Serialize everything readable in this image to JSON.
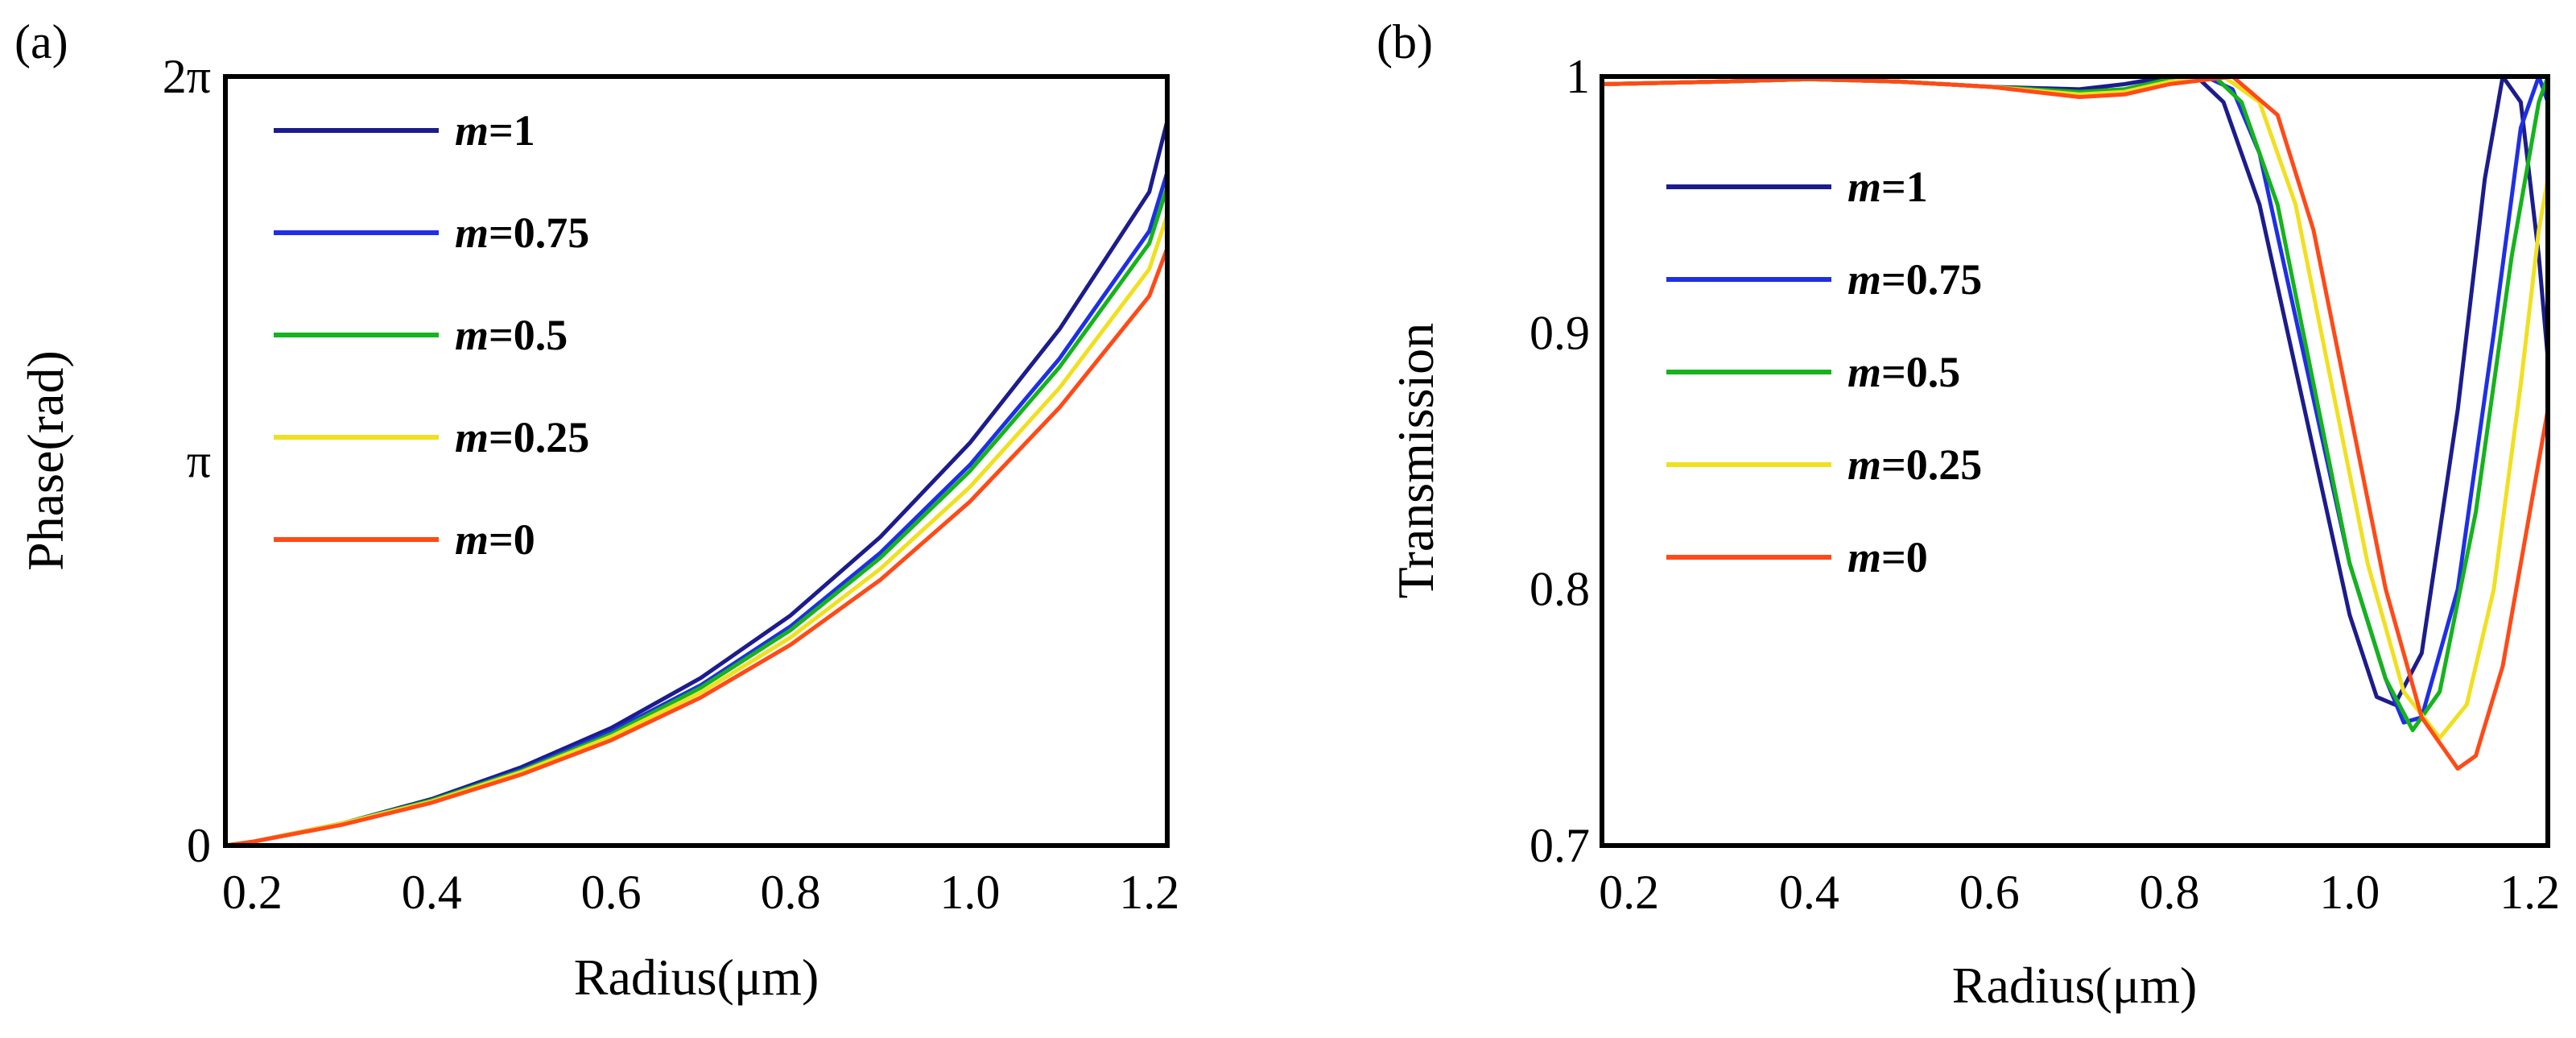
{
  "figure": {
    "background": "#ffffff"
  },
  "chart_data": [
    {
      "type": "line",
      "panel_label": "(a)",
      "title": "",
      "xlabel": "Radius(μm)",
      "ylabel": "Phase(rad)",
      "xlim": [
        0.17,
        1.22
      ],
      "ylim": [
        0,
        6.2832
      ],
      "xticks": [
        {
          "value": 0.2,
          "label": "0.2"
        },
        {
          "value": 0.4,
          "label": "0.4"
        },
        {
          "value": 0.6,
          "label": "0.6"
        },
        {
          "value": 0.8,
          "label": "0.8"
        },
        {
          "value": 1.0,
          "label": "1.0"
        },
        {
          "value": 1.2,
          "label": "1.2"
        }
      ],
      "yticks": [
        {
          "value": 0,
          "label": "0"
        },
        {
          "value": 3.1416,
          "label": "π"
        },
        {
          "value": 6.2832,
          "label": "2π"
        }
      ],
      "grid": false,
      "legend_position": "top-left",
      "series": [
        {
          "name": "m=1",
          "m_label": "m",
          "value_label": "=1",
          "color": "#1c1c8c",
          "x": [
            0.17,
            0.2,
            0.3,
            0.4,
            0.5,
            0.6,
            0.7,
            0.8,
            0.9,
            1.0,
            1.1,
            1.2,
            1.22
          ],
          "y": [
            0.0,
            0.03,
            0.18,
            0.38,
            0.64,
            0.96,
            1.37,
            1.88,
            2.52,
            3.29,
            4.22,
            5.34,
            5.92
          ]
        },
        {
          "name": "m=0.75",
          "m_label": "m",
          "value_label": "=0.75",
          "color": "#1f2fe6",
          "x": [
            0.17,
            0.2,
            0.3,
            0.4,
            0.5,
            0.6,
            0.7,
            0.8,
            0.9,
            1.0,
            1.1,
            1.2,
            1.22
          ],
          "y": [
            0.0,
            0.03,
            0.18,
            0.37,
            0.62,
            0.93,
            1.31,
            1.79,
            2.39,
            3.11,
            3.98,
            5.02,
            5.5
          ]
        },
        {
          "name": "m=0.5",
          "m_label": "m",
          "value_label": "=0.5",
          "color": "#15b31c",
          "x": [
            0.17,
            0.2,
            0.3,
            0.4,
            0.5,
            0.6,
            0.7,
            0.8,
            0.9,
            1.0,
            1.1,
            1.2,
            1.22
          ],
          "y": [
            0.0,
            0.03,
            0.18,
            0.37,
            0.61,
            0.91,
            1.29,
            1.76,
            2.35,
            3.06,
            3.91,
            4.92,
            5.38
          ]
        },
        {
          "name": "m=0.25",
          "m_label": "m",
          "value_label": "=0.25",
          "color": "#f0e020",
          "x": [
            0.17,
            0.2,
            0.3,
            0.4,
            0.5,
            0.6,
            0.7,
            0.8,
            0.9,
            1.0,
            1.1,
            1.2,
            1.22
          ],
          "y": [
            0.0,
            0.03,
            0.18,
            0.36,
            0.6,
            0.89,
            1.25,
            1.7,
            2.26,
            2.93,
            3.74,
            4.71,
            5.15
          ]
        },
        {
          "name": "m=0",
          "m_label": "m",
          "value_label": "=0",
          "color": "#ff4a17",
          "x": [
            0.17,
            0.2,
            0.3,
            0.4,
            0.5,
            0.6,
            0.7,
            0.8,
            0.9,
            1.0,
            1.1,
            1.2,
            1.22
          ],
          "y": [
            0.0,
            0.03,
            0.17,
            0.35,
            0.58,
            0.86,
            1.21,
            1.64,
            2.17,
            2.81,
            3.58,
            4.49,
            4.88
          ]
        }
      ]
    },
    {
      "type": "line",
      "panel_label": "(b)",
      "title": "",
      "xlabel": "Radius(μm)",
      "ylabel": "Transmission",
      "xlim": [
        0.17,
        1.22
      ],
      "ylim": [
        0.7,
        1.0
      ],
      "xticks": [
        {
          "value": 0.2,
          "label": "0.2"
        },
        {
          "value": 0.4,
          "label": "0.4"
        },
        {
          "value": 0.6,
          "label": "0.6"
        },
        {
          "value": 0.8,
          "label": "0.8"
        },
        {
          "value": 1.0,
          "label": "1.0"
        },
        {
          "value": 1.2,
          "label": "1.2"
        }
      ],
      "yticks": [
        {
          "value": 0.7,
          "label": "0.7"
        },
        {
          "value": 0.8,
          "label": "0.8"
        },
        {
          "value": 0.9,
          "label": "0.9"
        },
        {
          "value": 1.0,
          "label": "1"
        }
      ],
      "grid": false,
      "legend_position": "left",
      "series": [
        {
          "name": "m=1",
          "m_label": "m",
          "value_label": "=1",
          "color": "#1c1c8c",
          "x": [
            0.17,
            0.3,
            0.4,
            0.5,
            0.6,
            0.7,
            0.75,
            0.8,
            0.83,
            0.86,
            0.9,
            0.95,
            1.0,
            1.03,
            1.05,
            1.08,
            1.12,
            1.15,
            1.17,
            1.19,
            1.21,
            1.22
          ],
          "y": [
            0.997,
            0.998,
            0.999,
            0.998,
            0.996,
            0.995,
            0.997,
            1.0,
            1.0,
            0.99,
            0.95,
            0.87,
            0.79,
            0.758,
            0.755,
            0.775,
            0.87,
            0.96,
            1.0,
            0.99,
            0.93,
            0.89
          ]
        },
        {
          "name": "m=0.75",
          "m_label": "m",
          "value_label": "=0.75",
          "color": "#1f2fe6",
          "x": [
            0.17,
            0.3,
            0.4,
            0.5,
            0.6,
            0.7,
            0.75,
            0.8,
            0.84,
            0.87,
            0.9,
            0.95,
            1.0,
            1.04,
            1.06,
            1.08,
            1.12,
            1.16,
            1.19,
            1.21,
            1.22
          ],
          "y": [
            0.997,
            0.998,
            0.999,
            0.998,
            0.996,
            0.994,
            0.995,
            0.999,
            1.0,
            0.995,
            0.97,
            0.89,
            0.81,
            0.765,
            0.748,
            0.75,
            0.8,
            0.9,
            0.98,
            1.0,
            0.99
          ]
        },
        {
          "name": "m=0.5",
          "m_label": "m",
          "value_label": "=0.5",
          "color": "#15b31c",
          "x": [
            0.17,
            0.3,
            0.4,
            0.5,
            0.6,
            0.7,
            0.75,
            0.8,
            0.85,
            0.88,
            0.92,
            0.96,
            1.0,
            1.04,
            1.07,
            1.1,
            1.14,
            1.18,
            1.21,
            1.22
          ],
          "y": [
            0.997,
            0.998,
            0.999,
            0.998,
            0.996,
            0.994,
            0.995,
            0.999,
            1.0,
            0.99,
            0.95,
            0.88,
            0.81,
            0.765,
            0.745,
            0.76,
            0.83,
            0.93,
            0.99,
            1.0
          ]
        },
        {
          "name": "m=0.25",
          "m_label": "m",
          "value_label": "=0.25",
          "color": "#f0e020",
          "x": [
            0.17,
            0.3,
            0.4,
            0.5,
            0.6,
            0.7,
            0.75,
            0.8,
            0.86,
            0.9,
            0.94,
            0.98,
            1.02,
            1.06,
            1.1,
            1.13,
            1.16,
            1.19,
            1.21,
            1.22
          ],
          "y": [
            0.997,
            0.998,
            0.999,
            0.998,
            0.996,
            0.993,
            0.994,
            0.998,
            1.0,
            0.99,
            0.95,
            0.88,
            0.81,
            0.76,
            0.742,
            0.755,
            0.8,
            0.88,
            0.94,
            0.96
          ]
        },
        {
          "name": "m=0",
          "m_label": "m",
          "value_label": "=0",
          "color": "#ff4a17",
          "x": [
            0.17,
            0.3,
            0.4,
            0.5,
            0.6,
            0.7,
            0.75,
            0.8,
            0.87,
            0.92,
            0.96,
            1.0,
            1.04,
            1.08,
            1.12,
            1.14,
            1.17,
            1.2,
            1.22
          ],
          "y": [
            0.997,
            0.998,
            0.999,
            0.998,
            0.996,
            0.992,
            0.993,
            0.997,
            1.0,
            0.985,
            0.94,
            0.87,
            0.8,
            0.75,
            0.73,
            0.735,
            0.77,
            0.83,
            0.87
          ]
        }
      ]
    }
  ]
}
